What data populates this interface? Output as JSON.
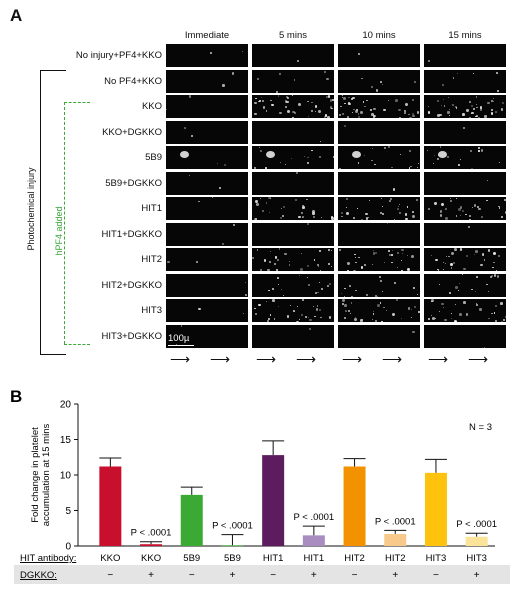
{
  "panel_a": {
    "letter": "A",
    "columns": [
      "Immediate",
      "5 mins",
      "10 mins",
      "15 mins"
    ],
    "rows": [
      "No injury+PF4+KKO",
      "No PF4+KKO",
      "KKO",
      "KKO+DGKKO",
      "5B9",
      "5B9+DGKKO",
      "HIT1",
      "HIT1+DGKKO",
      "HIT2",
      "HIT2+DGKKO",
      "HIT3",
      "HIT3+DGKKO"
    ],
    "bracket_outer": "Photochemical injury",
    "bracket_inner": "hPF4 added",
    "scale_bar": "100µ",
    "inner_color": "#3aa83a",
    "arrow": "⟶"
  },
  "chart_data": {
    "panel_letter": "B",
    "type": "bar",
    "title": "",
    "ylabel": "Fold change in platelet accumulation at 15 mins",
    "ylim": [
      0,
      20
    ],
    "yticks": [
      0,
      5,
      10,
      15,
      20
    ],
    "annotation": "N = 3",
    "categories": [
      "KKO",
      "KKO",
      "5B9",
      "5B9",
      "HIT1",
      "HIT1",
      "HIT2",
      "HIT2",
      "HIT3",
      "HIT3"
    ],
    "dgkko": [
      "−",
      "+",
      "−",
      "+",
      "−",
      "+",
      "−",
      "+",
      "−",
      "+"
    ],
    "row_labels": {
      "hit": "HIT antibody:",
      "dgkko": "DGKKO:"
    },
    "values": [
      11.2,
      0.25,
      7.2,
      0.1,
      12.8,
      1.5,
      11.2,
      1.7,
      10.3,
      1.3
    ],
    "errors": [
      1.2,
      0.35,
      1.1,
      1.5,
      2.0,
      1.3,
      1.1,
      0.5,
      1.9,
      0.5
    ],
    "colors": [
      "#c8102e",
      "#c8102e",
      "#3aaa35",
      "#3aaa35",
      "#5c1c5e",
      "#a98cc0",
      "#f39200",
      "#f7c98a",
      "#ffc20e",
      "#fbe39a"
    ],
    "pvalue_label": "P < .0001",
    "pvalue_indices": [
      1,
      3,
      5,
      7,
      9
    ]
  }
}
